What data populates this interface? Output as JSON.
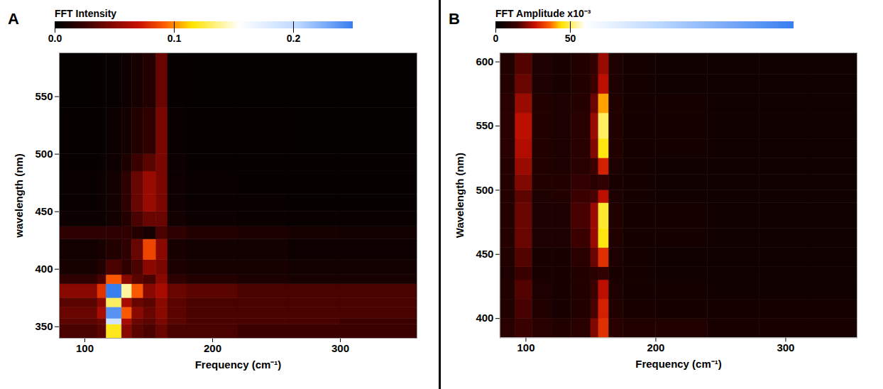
{
  "chart_data": [
    {
      "type": "heatmap",
      "panel": "A",
      "x_label": "Frequency (cm⁻¹)",
      "y_label": "wavelength (nm)",
      "xlim": [
        80,
        360
      ],
      "xticks": [
        100,
        200,
        300
      ],
      "ylim": [
        340,
        588
      ],
      "yticks": [
        350,
        400,
        450,
        500,
        550
      ],
      "x_edges": [
        80,
        110,
        117,
        129,
        137,
        146,
        156,
        165,
        180,
        220,
        260,
        300,
        360
      ],
      "y_edges": [
        340,
        352,
        357,
        367,
        375,
        387,
        395,
        408,
        426,
        437,
        450,
        465,
        485,
        500,
        540,
        588
      ],
      "values": [
        [
          0.03,
          0.035,
          0.12,
          0.05,
          0.035,
          0.03,
          0.04,
          0.03,
          0.03,
          0.025,
          0.025,
          0.025
        ],
        [
          0.035,
          0.04,
          0.19,
          0.06,
          0.04,
          0.035,
          0.045,
          0.035,
          0.03,
          0.03,
          0.03,
          0.025
        ],
        [
          0.04,
          0.06,
          0.24,
          0.09,
          0.05,
          0.04,
          0.05,
          0.035,
          0.03,
          0.03,
          0.03,
          0.03
        ],
        [
          0.035,
          0.05,
          0.13,
          0.06,
          0.04,
          0.035,
          0.05,
          0.035,
          0.03,
          0.03,
          0.03,
          0.03
        ],
        [
          0.05,
          0.08,
          0.25,
          0.14,
          0.09,
          0.05,
          0.06,
          0.04,
          0.035,
          0.03,
          0.03,
          0.03
        ],
        [
          0.02,
          0.03,
          0.09,
          0.05,
          0.035,
          0.03,
          0.05,
          0.02,
          0.015,
          0.012,
          0.01,
          0.01
        ],
        [
          0.01,
          0.015,
          0.03,
          0.02,
          0.03,
          0.05,
          0.045,
          0.012,
          0.01,
          0.01,
          0.008,
          0.008
        ],
        [
          0.008,
          0.01,
          0.015,
          0.02,
          0.04,
          0.085,
          0.05,
          0.01,
          0.008,
          0.008,
          0.006,
          0.006
        ],
        [
          0.02,
          0.02,
          0.02,
          0.02,
          0.015,
          0.01,
          0.03,
          0.02,
          0.015,
          0.012,
          0.01,
          0.008
        ],
        [
          0.005,
          0.005,
          0.008,
          0.015,
          0.03,
          0.04,
          0.04,
          0.008,
          0.005,
          0.004,
          0.004,
          0.004
        ],
        [
          0.004,
          0.005,
          0.008,
          0.02,
          0.04,
          0.055,
          0.045,
          0.006,
          0.004,
          0.004,
          0.003,
          0.003
        ],
        [
          0.004,
          0.005,
          0.008,
          0.02,
          0.04,
          0.055,
          0.045,
          0.006,
          0.004,
          0.003,
          0.003,
          0.003
        ],
        [
          0.003,
          0.004,
          0.006,
          0.012,
          0.025,
          0.035,
          0.045,
          0.005,
          0.003,
          0.003,
          0.003,
          0.003
        ],
        [
          0.003,
          0.003,
          0.005,
          0.008,
          0.015,
          0.02,
          0.045,
          0.004,
          0.003,
          0.003,
          0.002,
          0.002
        ],
        [
          0.002,
          0.003,
          0.004,
          0.006,
          0.01,
          0.015,
          0.04,
          0.003,
          0.002,
          0.002,
          0.002,
          0.002
        ]
      ],
      "colorbar": {
        "label": "FFT Intensity",
        "range": [
          0,
          0.25
        ],
        "ticks": [
          {
            "value": 0,
            "label": "0.0"
          },
          0.1,
          0.2
        ]
      }
    },
    {
      "type": "heatmap",
      "panel": "B",
      "x_label": "Frequency (cm⁻¹)",
      "y_label": "Wavelength (nm)",
      "xlim": [
        80,
        355
      ],
      "xticks": [
        100,
        200,
        300
      ],
      "ylim": [
        385,
        607
      ],
      "yticks": [
        400,
        450,
        500,
        550,
        600
      ],
      "x_edges": [
        80,
        92,
        105,
        120,
        135,
        150,
        156,
        164,
        175,
        200,
        240,
        280,
        320,
        355
      ],
      "y_edges": [
        385,
        400,
        415,
        430,
        440,
        455,
        470,
        490,
        500,
        512,
        525,
        540,
        560,
        575,
        590,
        607
      ],
      "values": [
        [
          10,
          14,
          10,
          8,
          10,
          20,
          30,
          10,
          8,
          8,
          6,
          6,
          6
        ],
        [
          8,
          15,
          8,
          6,
          8,
          15,
          28,
          8,
          6,
          5,
          5,
          5,
          5
        ],
        [
          8,
          16,
          7,
          6,
          8,
          14,
          25,
          7,
          5,
          5,
          4,
          4,
          4
        ],
        [
          7,
          14,
          6,
          6,
          8,
          10,
          12,
          6,
          5,
          4,
          4,
          4,
          4
        ],
        [
          8,
          16,
          6,
          6,
          10,
          18,
          30,
          7,
          5,
          4,
          4,
          4,
          4
        ],
        [
          9,
          18,
          7,
          7,
          14,
          22,
          45,
          8,
          5,
          5,
          4,
          4,
          4
        ],
        [
          9,
          18,
          7,
          7,
          15,
          22,
          47,
          8,
          5,
          5,
          4,
          4,
          4
        ],
        [
          9,
          17,
          7,
          8,
          14,
          15,
          25,
          7,
          5,
          4,
          4,
          4,
          4
        ],
        [
          9,
          20,
          8,
          8,
          12,
          10,
          12,
          6,
          5,
          4,
          4,
          4,
          4
        ],
        [
          9,
          22,
          8,
          7,
          10,
          14,
          28,
          7,
          5,
          4,
          4,
          4,
          4
        ],
        [
          10,
          24,
          8,
          7,
          10,
          20,
          45,
          8,
          5,
          5,
          4,
          4,
          4
        ],
        [
          10,
          25,
          8,
          7,
          10,
          22,
          50,
          8,
          5,
          5,
          4,
          4,
          4
        ],
        [
          10,
          22,
          8,
          7,
          9,
          18,
          40,
          8,
          5,
          5,
          4,
          4,
          4
        ],
        [
          9,
          18,
          7,
          6,
          8,
          14,
          25,
          7,
          5,
          4,
          4,
          4,
          4
        ],
        [
          8,
          16,
          7,
          6,
          8,
          12,
          22,
          7,
          5,
          4,
          4,
          4,
          4
        ]
      ],
      "colorbar": {
        "label": "FFT Amplitude x10⁻³",
        "range": [
          0,
          200
        ],
        "ticks": [
          0,
          50
        ]
      }
    }
  ]
}
